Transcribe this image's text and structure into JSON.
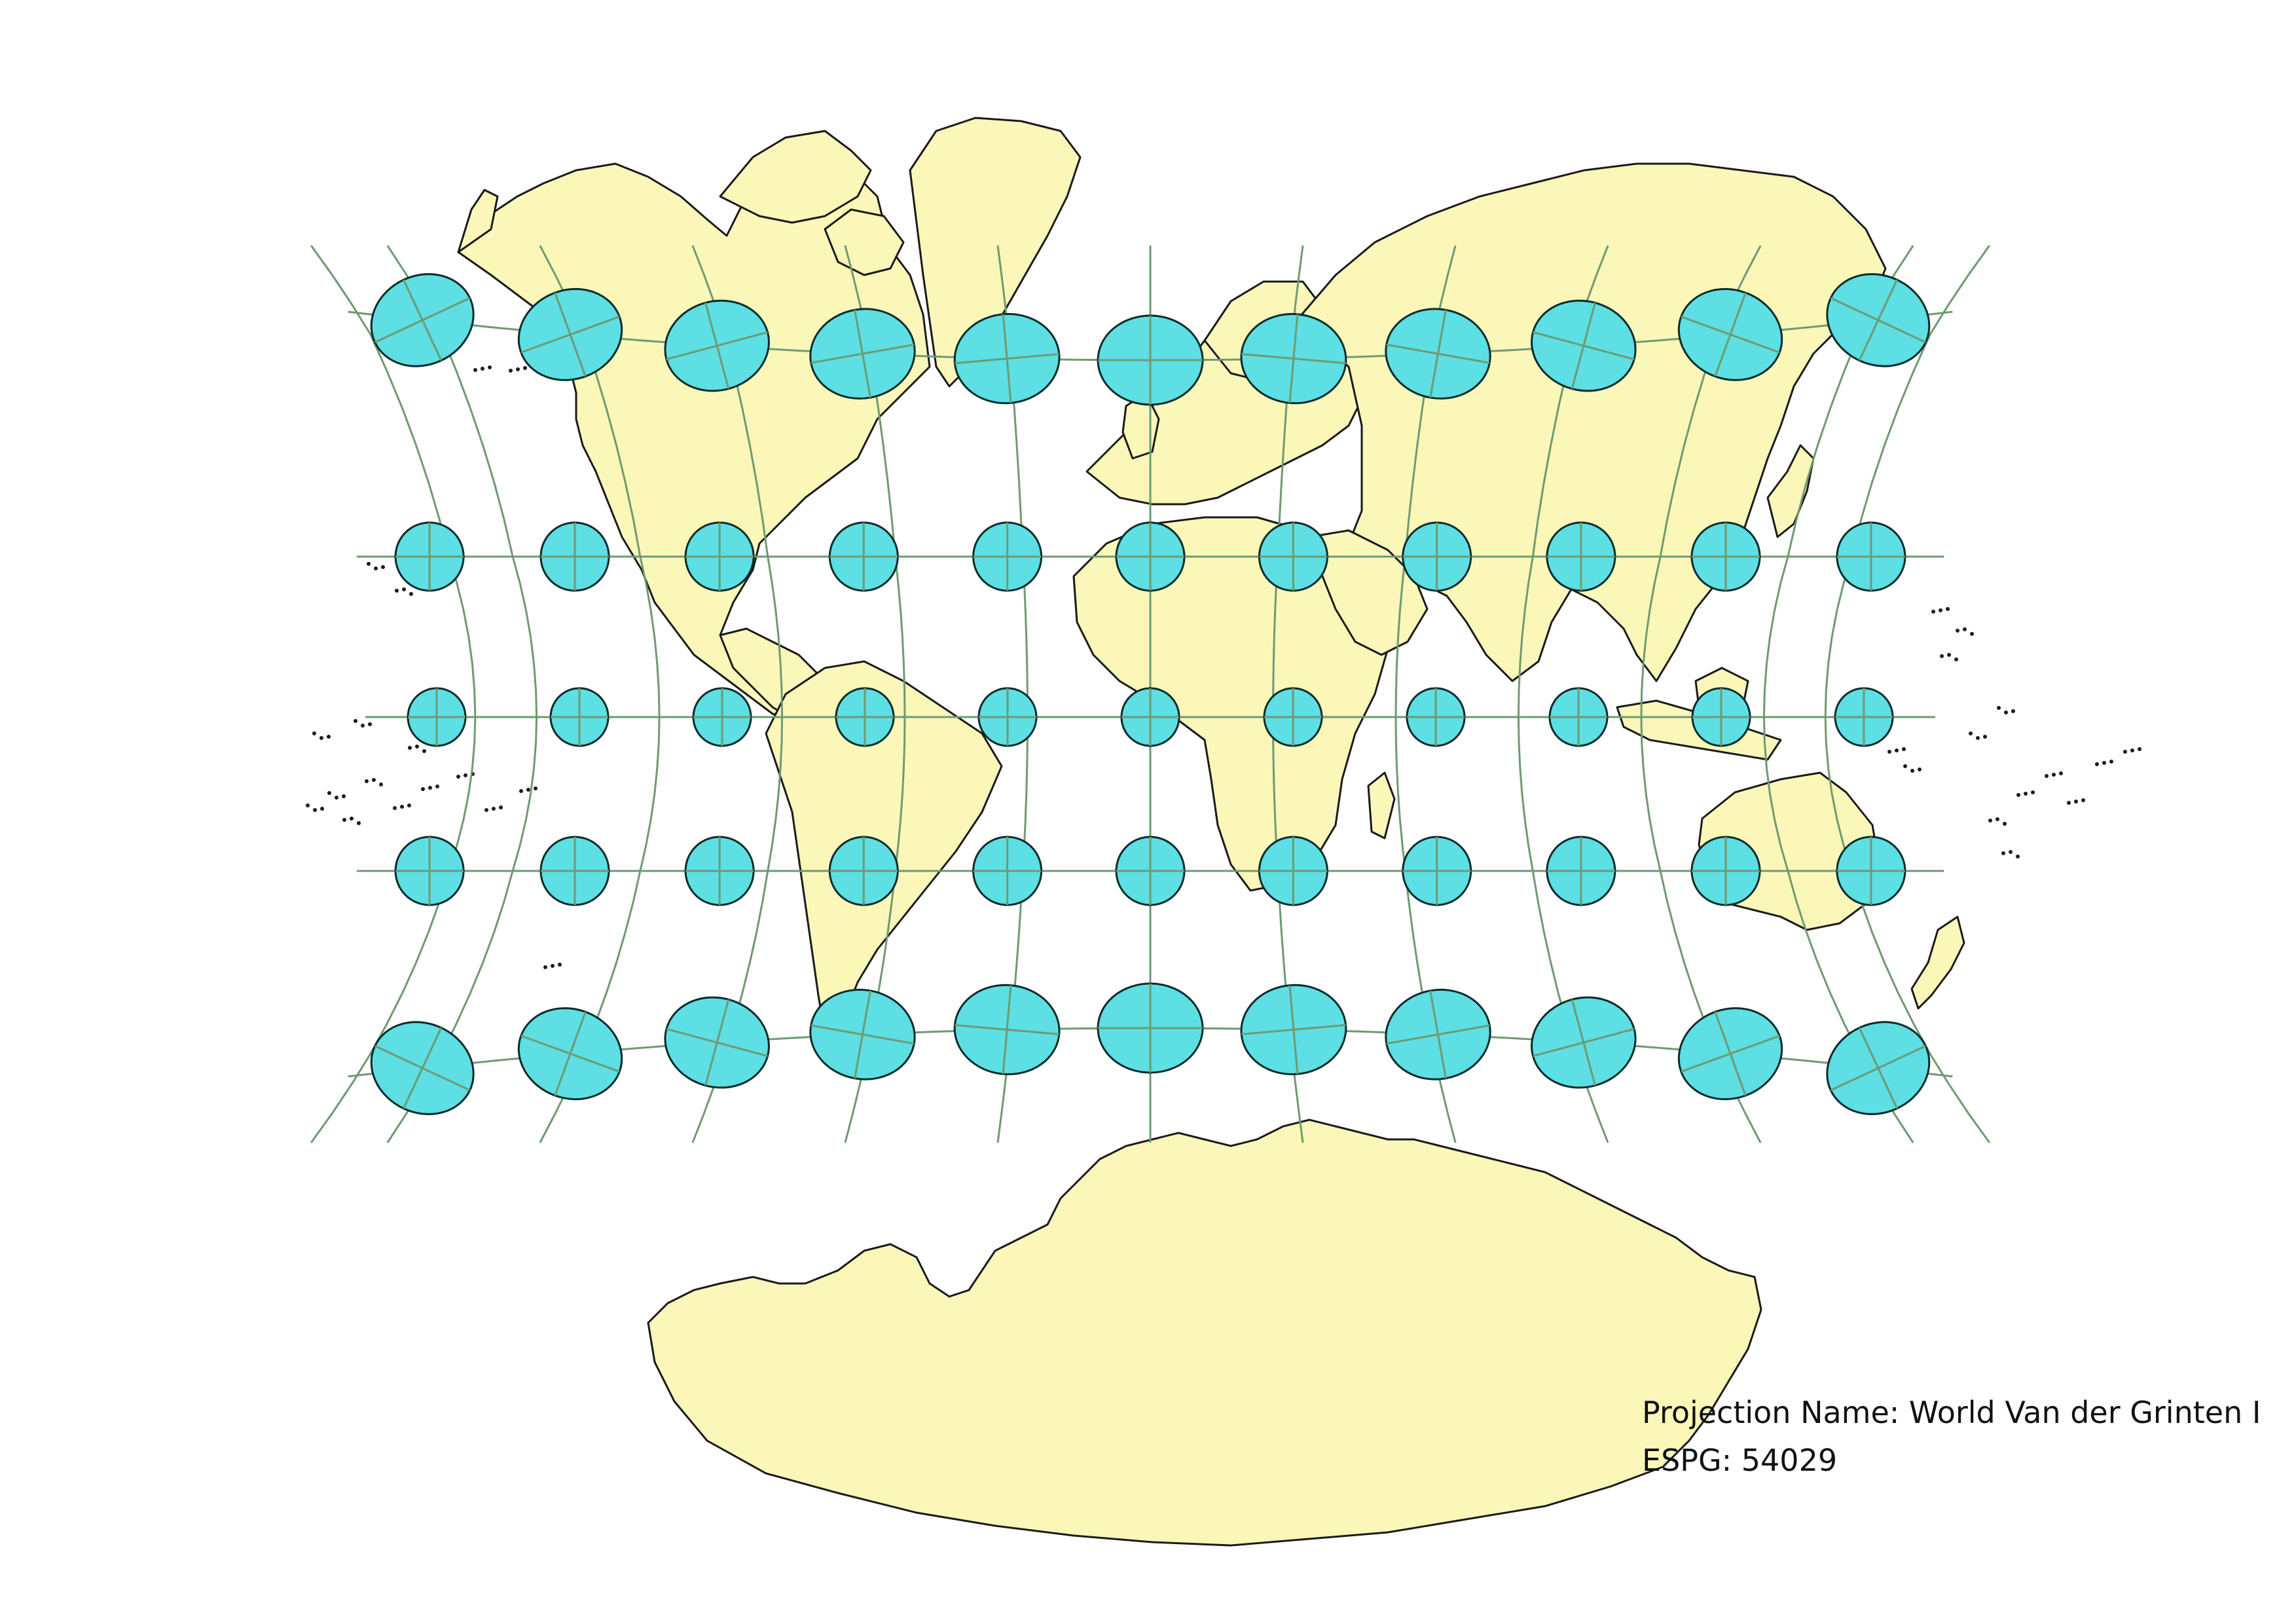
{
  "map": {
    "subject": "world-map-with-tissot-indicatrices",
    "colors": {
      "land": "#fbf7b9",
      "ellipse_fill": "#5ddfe3",
      "graticule": "#6f9a72",
      "outline": "#1a1a1a",
      "background": "#ffffff"
    },
    "graticule": {
      "longitudes_deg": [
        -180,
        -150,
        -120,
        -90,
        -60,
        -30,
        0,
        30,
        60,
        90,
        120,
        150,
        180
      ],
      "latitudes_deg": [
        -60,
        -30,
        0,
        30,
        60
      ]
    }
  },
  "caption": {
    "projection_name": "Projection Name: World Van der Grinten I",
    "code": "ESPG: 54029"
  }
}
